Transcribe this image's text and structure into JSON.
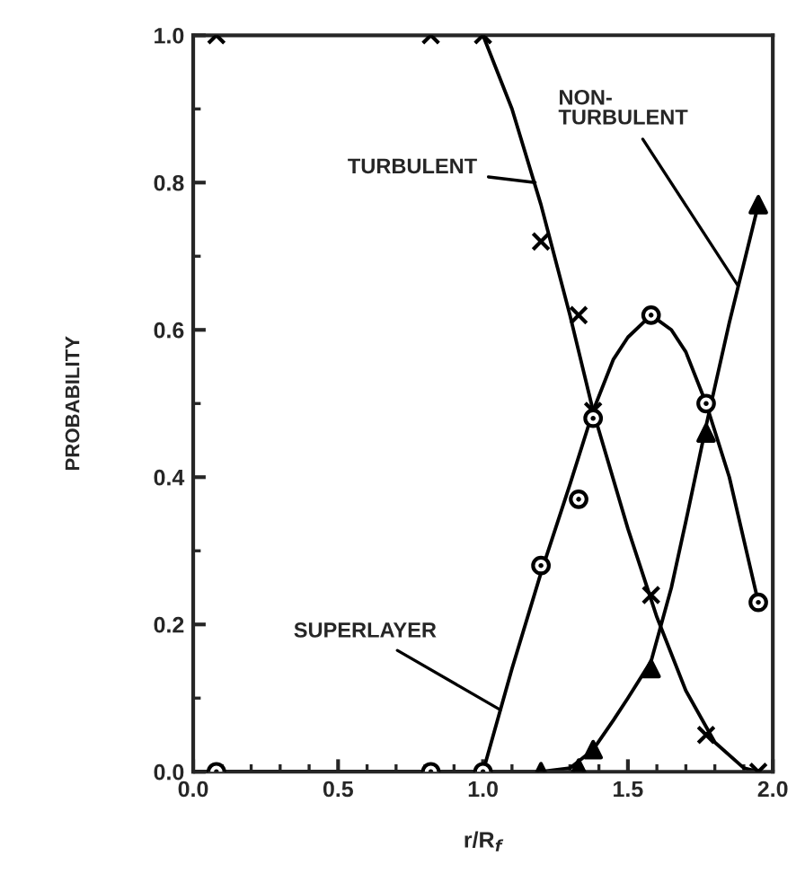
{
  "chart_data": {
    "type": "scatter",
    "xlabel": "r/R$_{f}$",
    "ylabel": "PROBABILITY",
    "xlim": [
      0,
      2
    ],
    "ylim": [
      0,
      1
    ],
    "xticks": [
      {
        "value": 0,
        "label": "0.0"
      },
      {
        "value": 0.5,
        "label": "0.5"
      },
      {
        "value": 1,
        "label": "1.0"
      },
      {
        "value": 1.5,
        "label": "1.5"
      },
      {
        "value": 2,
        "label": "2.0"
      }
    ],
    "yticks": [
      {
        "value": 0,
        "label": "0.0"
      },
      {
        "value": 0.2,
        "label": "0.2"
      },
      {
        "value": 0.4,
        "label": "0.4"
      },
      {
        "value": 0.6,
        "label": "0.6"
      },
      {
        "value": 0.8,
        "label": "0.8"
      },
      {
        "value": 1,
        "label": "1.0"
      }
    ],
    "grid": false,
    "series": [
      {
        "marker": "cross",
        "color": "#000000",
        "x": [
          0.08,
          0.82,
          1.0,
          1.2,
          1.33,
          1.38,
          1.58,
          1.77,
          1.95
        ],
        "values": [
          1.0,
          1.0,
          1.0,
          0.72,
          0.62,
          0.49,
          0.24,
          0.05,
          0.0
        ]
      },
      {
        "marker": "circle",
        "color": "#000000",
        "x": [
          0.08,
          0.82,
          1.0,
          1.2,
          1.33,
          1.38,
          1.58,
          1.77,
          1.95
        ],
        "values": [
          0.0,
          0.0,
          0.0,
          0.28,
          0.37,
          0.48,
          0.62,
          0.5,
          0.23
        ]
      },
      {
        "marker": "triangle",
        "color": "#000000",
        "x": [
          1.2,
          1.33,
          1.38,
          1.58,
          1.77,
          1.95
        ],
        "values": [
          0.0,
          0.005,
          0.03,
          0.14,
          0.46,
          0.77
        ]
      },
      {
        "type": "line",
        "marker": "none",
        "color": "#000000",
        "x": [
          0.0,
          1.0,
          1.1,
          1.2,
          1.3,
          1.38,
          1.5,
          1.6,
          1.7,
          1.8,
          1.9,
          1.95
        ],
        "values": [
          1.0,
          1.0,
          0.9,
          0.77,
          0.62,
          0.49,
          0.33,
          0.21,
          0.11,
          0.04,
          0.005,
          0.0
        ]
      },
      {
        "type": "line",
        "marker": "none",
        "color": "#000000",
        "x": [
          0.0,
          1.0,
          1.1,
          1.2,
          1.3,
          1.38,
          1.45,
          1.5,
          1.58,
          1.65,
          1.7,
          1.77,
          1.85,
          1.95
        ],
        "values": [
          0.0,
          0.0,
          0.14,
          0.27,
          0.39,
          0.49,
          0.56,
          0.59,
          0.62,
          0.6,
          0.57,
          0.5,
          0.4,
          0.23
        ]
      },
      {
        "type": "line",
        "marker": "none",
        "color": "#000000",
        "x": [
          0.0,
          1.2,
          1.3,
          1.38,
          1.45,
          1.5,
          1.58,
          1.65,
          1.7,
          1.77,
          1.85,
          1.95
        ],
        "values": [
          0.0,
          0.0,
          0.005,
          0.03,
          0.07,
          0.1,
          0.15,
          0.25,
          0.34,
          0.47,
          0.61,
          0.77
        ]
      }
    ],
    "annotations": [
      {
        "text": "TURBULENT",
        "x": 1.18,
        "y": 0.8
      },
      {
        "text": "NON-\nTURBULENT",
        "x": 1.88,
        "y": 0.66
      },
      {
        "text": "SUPERLAYER",
        "x": 1.06,
        "y": 0.084
      }
    ]
  }
}
